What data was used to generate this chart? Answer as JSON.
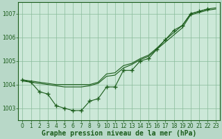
{
  "background_color": "#b8d8c8",
  "plot_bg_color": "#cce8d8",
  "grid_color": "#88bb99",
  "line_color": "#1a5c1a",
  "marker_color": "#1a5c1a",
  "title": "Graphe pression niveau de la mer (hPa)",
  "xlim": [
    -0.5,
    23.5
  ],
  "ylim": [
    1002.5,
    1007.5
  ],
  "yticks": [
    1003,
    1004,
    1005,
    1006,
    1007
  ],
  "xticks": [
    0,
    1,
    2,
    3,
    4,
    5,
    6,
    7,
    8,
    9,
    10,
    11,
    12,
    13,
    14,
    15,
    16,
    17,
    18,
    19,
    20,
    21,
    22,
    23
  ],
  "series": [
    {
      "x": [
        0,
        1,
        2,
        3,
        4,
        5,
        6,
        7,
        8,
        9,
        10,
        11,
        12,
        13,
        14,
        15,
        16,
        17,
        18,
        19,
        20,
        21,
        22
      ],
      "y": [
        1004.2,
        1004.1,
        1003.7,
        1003.6,
        1003.1,
        1003.0,
        1002.9,
        1002.9,
        1003.3,
        1003.4,
        1003.9,
        1003.9,
        1004.6,
        1004.6,
        1005.0,
        1005.1,
        1005.5,
        1005.9,
        1006.3,
        1006.5,
        1007.0,
        1007.1,
        1007.2
      ],
      "marker": true
    },
    {
      "x": [
        0,
        1,
        2,
        3,
        4,
        5,
        6,
        7,
        8,
        9,
        10,
        11,
        12,
        13,
        14,
        15,
        16,
        17,
        18,
        19,
        20,
        21,
        22,
        23
      ],
      "y": [
        1004.2,
        1004.15,
        1004.1,
        1004.05,
        1004.0,
        1004.0,
        1004.0,
        1004.0,
        1004.0,
        1004.1,
        1004.45,
        1004.5,
        1004.8,
        1004.9,
        1005.1,
        1005.25,
        1005.55,
        1005.9,
        1006.2,
        1006.5,
        1007.0,
        1007.1,
        1007.2,
        1007.25
      ],
      "marker": false
    },
    {
      "x": [
        0,
        1,
        2,
        3,
        4,
        5,
        6,
        7,
        8,
        9,
        10,
        11,
        12,
        13,
        14,
        15,
        16,
        17,
        18,
        19,
        20,
        21,
        22,
        23
      ],
      "y": [
        1004.15,
        1004.1,
        1004.05,
        1004.0,
        1003.95,
        1003.9,
        1003.9,
        1003.9,
        1003.95,
        1004.05,
        1004.35,
        1004.4,
        1004.7,
        1004.85,
        1005.05,
        1005.2,
        1005.5,
        1005.8,
        1006.1,
        1006.4,
        1006.95,
        1007.05,
        1007.15,
        1007.2
      ],
      "marker": false
    }
  ],
  "title_fontsize": 7,
  "tick_fontsize": 5.5
}
